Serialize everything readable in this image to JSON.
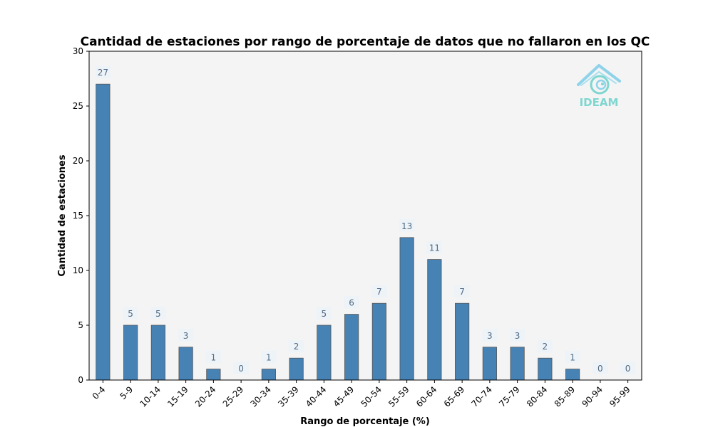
{
  "chart_data": {
    "type": "bar",
    "title": "Cantidad de estaciones por rango de porcentaje de datos que no fallaron en los QC",
    "xlabel": "Rango de porcentaje (%)",
    "ylabel": "Cantidad de estaciones",
    "categories": [
      "0-4",
      "5-9",
      "10-14",
      "15-19",
      "20-24",
      "25-29",
      "30-34",
      "35-39",
      "40-44",
      "45-49",
      "50-54",
      "55-59",
      "60-64",
      "65-69",
      "70-74",
      "75-79",
      "80-84",
      "85-89",
      "90-94",
      "95-99"
    ],
    "values": [
      27,
      5,
      5,
      3,
      1,
      0,
      1,
      2,
      5,
      6,
      7,
      13,
      11,
      7,
      3,
      3,
      2,
      1,
      0,
      0
    ],
    "ylim": [
      0,
      30
    ],
    "yticks": [
      0,
      5,
      10,
      15,
      20,
      25,
      30
    ],
    "grid": false,
    "bar_color": "#4682b4",
    "plot_background": "#f4f4f4",
    "data_labels": true
  },
  "logo": {
    "text": "IDEAM",
    "color": "#7fd6d0",
    "roof_color": "#8fd3ea"
  }
}
